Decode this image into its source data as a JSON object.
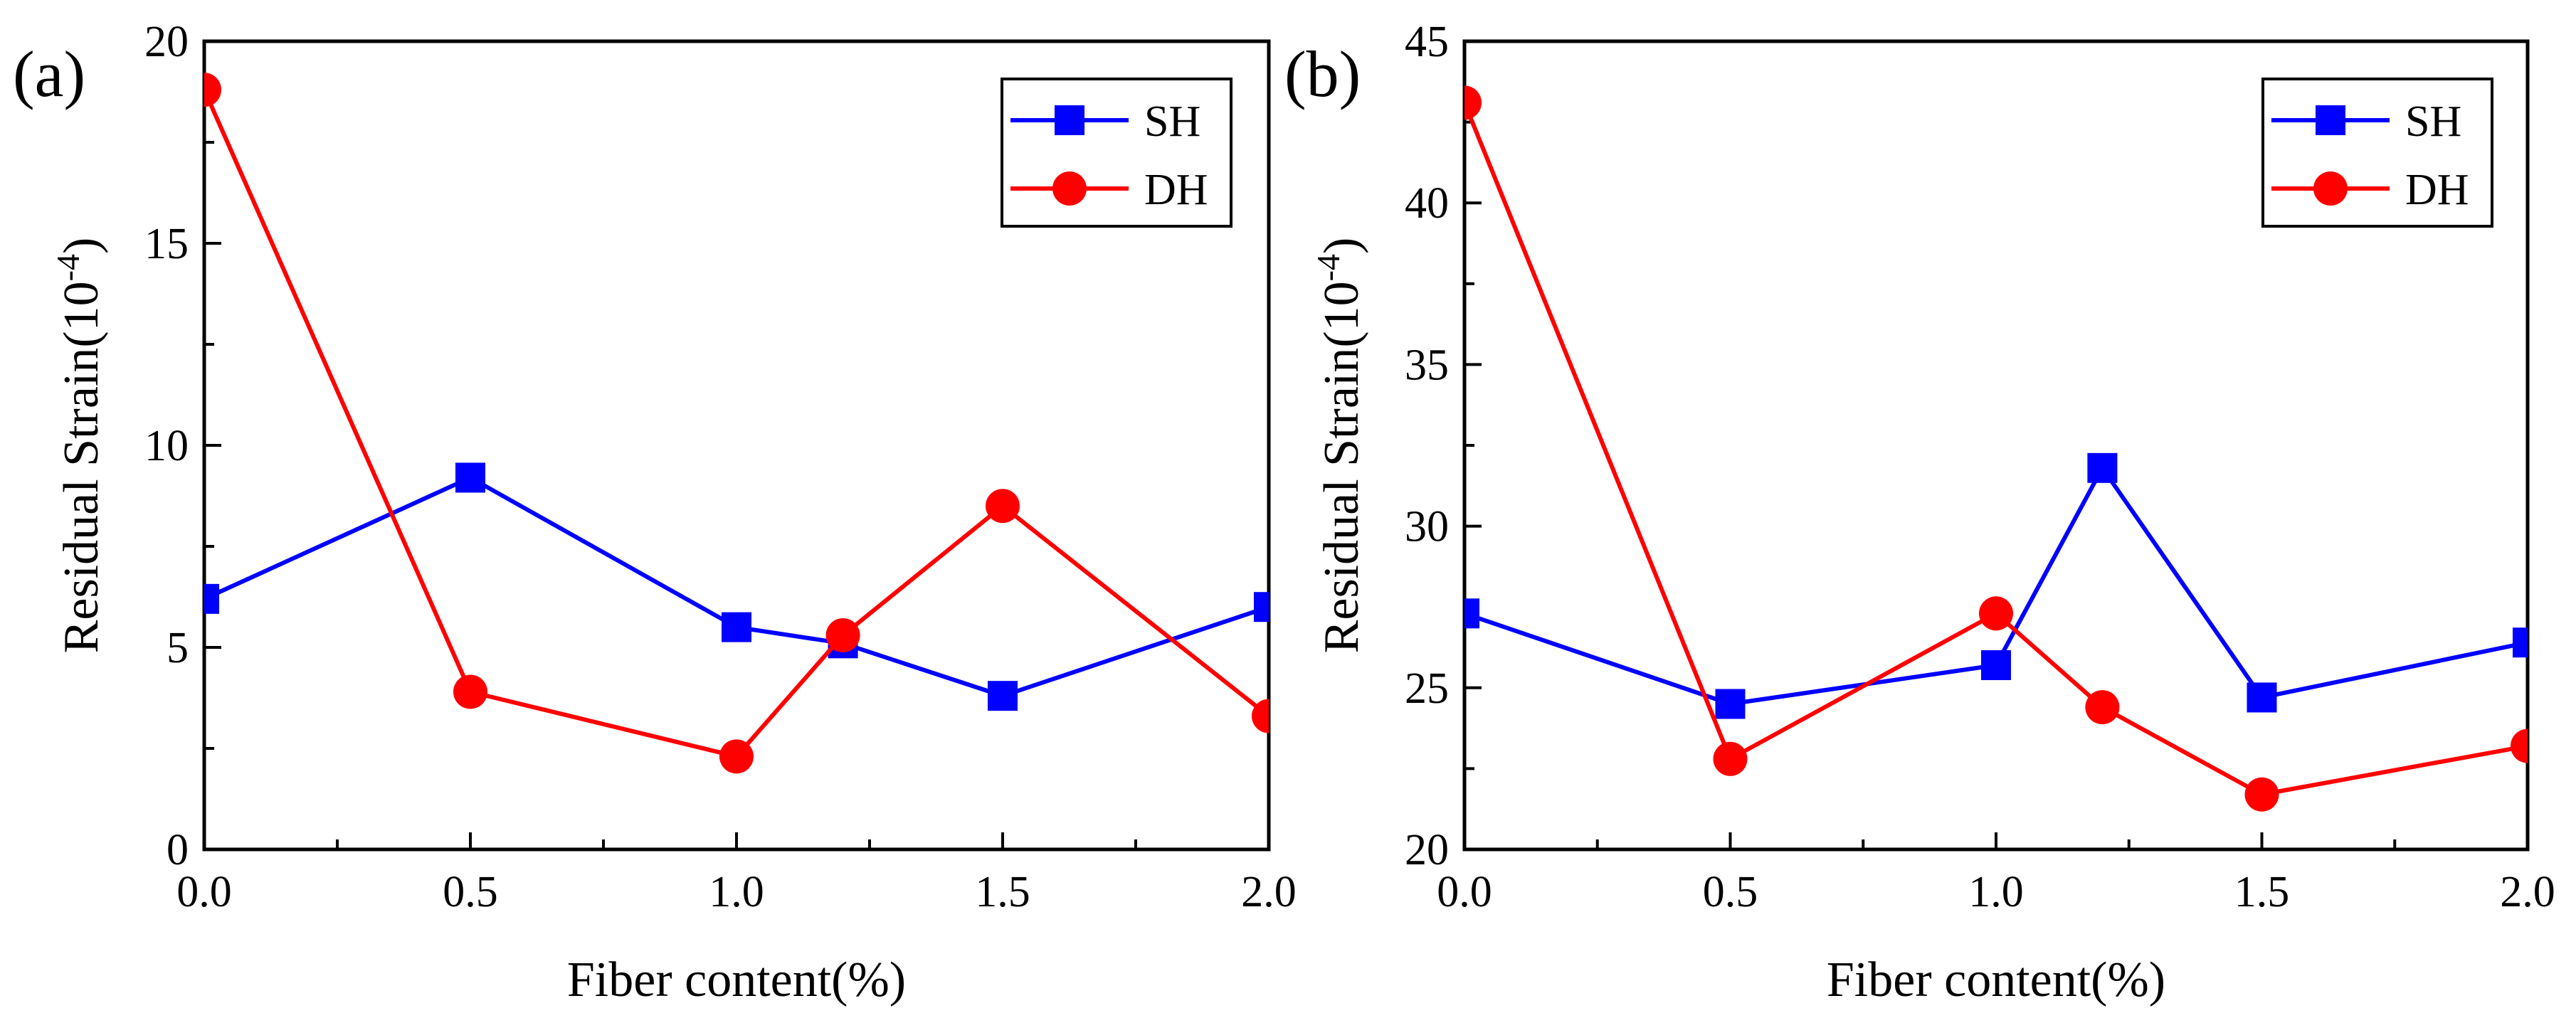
{
  "chart_data": [
    {
      "type": "line",
      "panel_label": "(a)",
      "xlabel": "Fiber content(%)",
      "ylabel": {
        "main": "Residual Strain(10",
        "exponent": "-4",
        "close": ")"
      },
      "xlim": [
        0,
        2
      ],
      "ylim": [
        0,
        20
      ],
      "x_ticks": [
        "0.0",
        "0.5",
        "1.0",
        "1.5",
        "2.0"
      ],
      "y_ticks": [
        "0",
        "5",
        "10",
        "15",
        "20"
      ],
      "grid": false,
      "legend_position": "top-right",
      "series": [
        {
          "name": "SH",
          "color": "#0000ff",
          "marker": "square",
          "x": [
            0,
            0.5,
            1.0,
            1.2,
            1.5,
            2.0
          ],
          "y": [
            6.2,
            9.2,
            5.5,
            5.1,
            3.8,
            6.0
          ]
        },
        {
          "name": "DH",
          "color": "#ff0000",
          "marker": "circle",
          "x": [
            0,
            0.5,
            1.0,
            1.2,
            1.5,
            2.0
          ],
          "y": [
            18.8,
            3.9,
            2.3,
            5.3,
            8.5,
            3.3
          ]
        }
      ]
    },
    {
      "type": "line",
      "panel_label": "(b)",
      "xlabel": "Fiber content(%)",
      "ylabel": {
        "main": "Residual Strain(10",
        "exponent": "-4",
        "close": ")"
      },
      "xlim": [
        0,
        2
      ],
      "ylim": [
        20,
        45
      ],
      "x_ticks": [
        "0.0",
        "0.5",
        "1.0",
        "1.5",
        "2.0"
      ],
      "y_ticks": [
        "20",
        "25",
        "30",
        "35",
        "40",
        "45"
      ],
      "grid": false,
      "legend_position": "top-right",
      "series": [
        {
          "name": "SH",
          "color": "#0000ff",
          "marker": "square",
          "x": [
            0,
            0.5,
            1.0,
            1.2,
            1.5,
            2.0
          ],
          "y": [
            27.3,
            24.5,
            25.7,
            31.8,
            24.7,
            26.4
          ]
        },
        {
          "name": "DH",
          "color": "#ff0000",
          "marker": "circle",
          "x": [
            0,
            0.5,
            1.0,
            1.2,
            1.5,
            2.0
          ],
          "y": [
            43.1,
            22.8,
            27.3,
            24.4,
            21.7,
            23.2
          ]
        }
      ]
    }
  ]
}
